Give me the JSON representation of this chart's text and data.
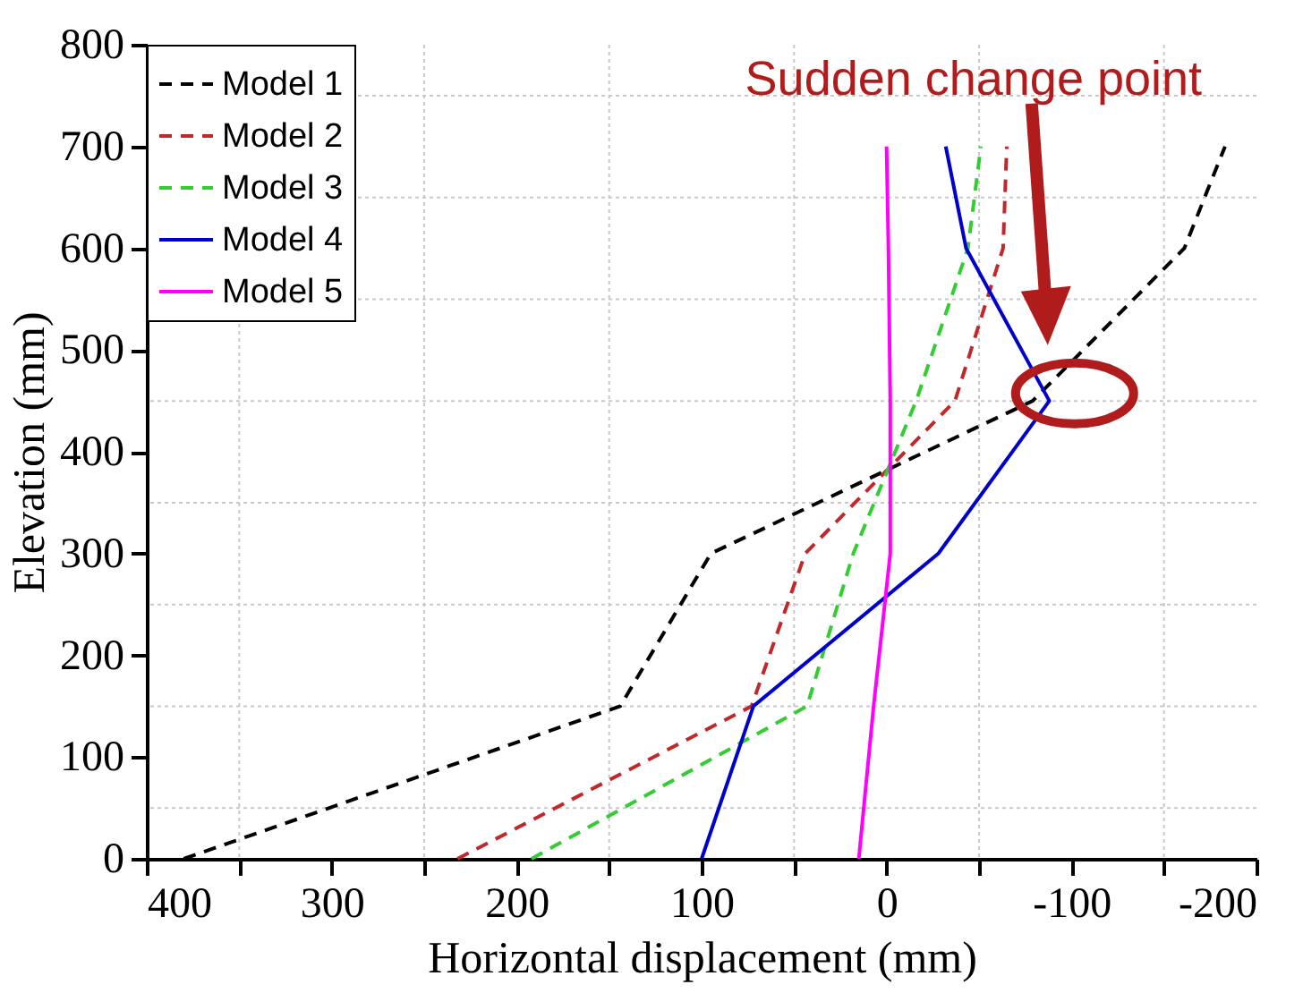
{
  "chart_data": {
    "type": "line",
    "xlabel": "Horizontal displacement (mm)",
    "ylabel": "Elevation (mm)",
    "xlim": [
      400,
      -200
    ],
    "ylim": [
      0,
      800
    ],
    "xticks": [
      400,
      {
        "value": 350,
        "label": null
      },
      300,
      {
        "value": 250,
        "label": null
      },
      200,
      {
        "value": 150,
        "label": null
      },
      100,
      {
        "value": 50,
        "label": null
      },
      0,
      {
        "value": -50,
        "label": null
      },
      -100,
      {
        "value": -150,
        "label": null
      },
      -200
    ],
    "yticks": [
      0,
      {
        "value": 50,
        "label": null
      },
      100,
      {
        "value": 150,
        "label": null
      },
      200,
      {
        "value": 250,
        "label": null
      },
      300,
      {
        "value": 350,
        "label": null
      },
      400,
      {
        "value": 450,
        "label": null
      },
      500,
      {
        "value": 550,
        "label": null
      },
      600,
      {
        "value": 650,
        "label": null
      },
      700,
      {
        "value": 750,
        "label": null
      },
      800
    ],
    "grid": true,
    "legend": "top left",
    "series": [
      {
        "name": "Model 1",
        "color": "#000000",
        "line_style": "dashed",
        "x": [
          380,
          144,
          95,
          -79,
          -161,
          -183
        ],
        "values": [
          0,
          150,
          300,
          450,
          600,
          700
        ]
      },
      {
        "name": "Model 2",
        "color": "#c0282a",
        "line_style": "dashed",
        "x": [
          232,
          73,
          44,
          -37,
          -63,
          -65
        ],
        "values": [
          0,
          150,
          300,
          450,
          600,
          700
        ]
      },
      {
        "name": "Model 3",
        "color": "#33cc33",
        "line_style": "dashed",
        "x": [
          192,
          43,
          18,
          -16,
          -44,
          -51
        ],
        "values": [
          0,
          150,
          300,
          450,
          600,
          700
        ]
      },
      {
        "name": "Model 4",
        "color": "#0000cc",
        "line_style": "solid",
        "x": [
          100,
          72,
          -28,
          -88,
          -43,
          -32
        ],
        "values": [
          0,
          150,
          300,
          450,
          600,
          700
        ]
      },
      {
        "name": "Model 5",
        "color": "#ff00ff",
        "line_style": "solid",
        "x": [
          15,
          7,
          -2,
          -2,
          -1,
          0
        ],
        "values": [
          0,
          150,
          300,
          450,
          600,
          700
        ]
      }
    ],
    "annotations": [
      "Sudden change point"
    ]
  }
}
